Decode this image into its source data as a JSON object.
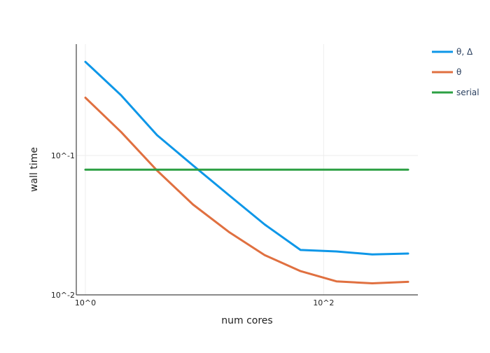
{
  "chart_data": {
    "type": "line",
    "xlabel": "num cores",
    "ylabel": "wall time",
    "x_scale": "log",
    "y_scale": "log",
    "xlim": [
      1,
      512
    ],
    "ylim": [
      0.01,
      0.63
    ],
    "x_ticks": [
      {
        "value": 1,
        "label": "10^0"
      },
      {
        "value": 100,
        "label": "10^2"
      }
    ],
    "y_ticks": [
      {
        "value": 0.01,
        "label": "10^-2"
      },
      {
        "value": 0.1,
        "label": "10^-1"
      }
    ],
    "grid": true,
    "legend_position": "top-right",
    "x": [
      1,
      2,
      4,
      8,
      16,
      32,
      64,
      128,
      256,
      512
    ],
    "series": [
      {
        "name": "θ, Δ",
        "color": "#0e97e8",
        "values": [
          0.47,
          0.27,
          0.14,
          0.085,
          0.052,
          0.032,
          0.021,
          0.0205,
          0.0195,
          0.0198
        ]
      },
      {
        "name": "θ",
        "color": "#e07040",
        "values": [
          0.26,
          0.147,
          0.078,
          0.0445,
          0.0283,
          0.0193,
          0.0148,
          0.0125,
          0.0121,
          0.0124
        ]
      },
      {
        "name": "serial",
        "color": "#2ca043",
        "values": [
          0.0792,
          0.0792,
          0.0792,
          0.0792,
          0.0792,
          0.0792,
          0.0792,
          0.0792,
          0.0792,
          0.0792
        ]
      }
    ]
  }
}
